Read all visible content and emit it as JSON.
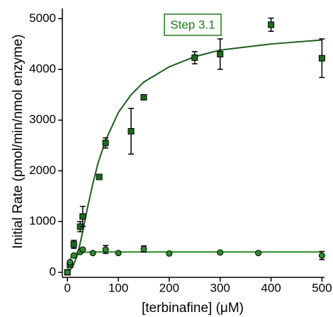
{
  "chart_data": {
    "type": "scatter",
    "annotation": "Step 3.1",
    "annotation_color": "#1e7a1e",
    "xlabel": "[terbinafine] (μM)",
    "ylabel": "Initial Rate (pmol/min/nmol enzyme)",
    "xlim": [
      -10,
      505
    ],
    "ylim": [
      -100,
      5200
    ],
    "xticks": [
      0,
      100,
      200,
      300,
      400,
      500
    ],
    "yticks": [
      0,
      1000,
      2000,
      3000,
      4000,
      5000
    ],
    "series": [
      {
        "type": "line",
        "color": "#1e5e1e",
        "x": [
          0,
          10,
          20,
          30,
          40,
          50,
          60,
          75,
          100,
          125,
          150,
          200,
          250,
          300,
          400,
          500
        ],
        "values": [
          0,
          100,
          350,
          800,
          1300,
          1750,
          2150,
          2600,
          3150,
          3500,
          3750,
          4050,
          4250,
          4380,
          4500,
          4580
        ]
      },
      {
        "type": "line",
        "color": "#2e8b2e",
        "x": [
          0,
          5,
          10,
          20,
          50,
          500
        ],
        "values": [
          0,
          250,
          350,
          390,
          400,
          400
        ]
      },
      {
        "type": "scatter",
        "marker": "square",
        "color": "#1e6b1e",
        "x": [
          0,
          5,
          12.5,
          25,
          30,
          62.5,
          75,
          125,
          150,
          250,
          300,
          400,
          500
        ],
        "values": [
          0,
          150,
          550,
          900,
          1100,
          1880,
          2550,
          2780,
          3450,
          4230,
          4300,
          4880,
          4220
        ],
        "errors": [
          null,
          null,
          80,
          100,
          200,
          null,
          100,
          450,
          null,
          120,
          300,
          130,
          380
        ]
      },
      {
        "type": "scatter",
        "marker": "circle",
        "color": "#2e8b2e",
        "x": [
          0,
          5,
          12.5,
          25,
          30,
          50,
          75,
          100,
          150,
          200,
          300,
          375,
          500
        ],
        "values": [
          0,
          200,
          330,
          400,
          450,
          380,
          450,
          380,
          460,
          370,
          390,
          380,
          330
        ],
        "errors": [
          null,
          null,
          null,
          null,
          null,
          null,
          80,
          null,
          60,
          null,
          null,
          null,
          80
        ]
      }
    ]
  }
}
